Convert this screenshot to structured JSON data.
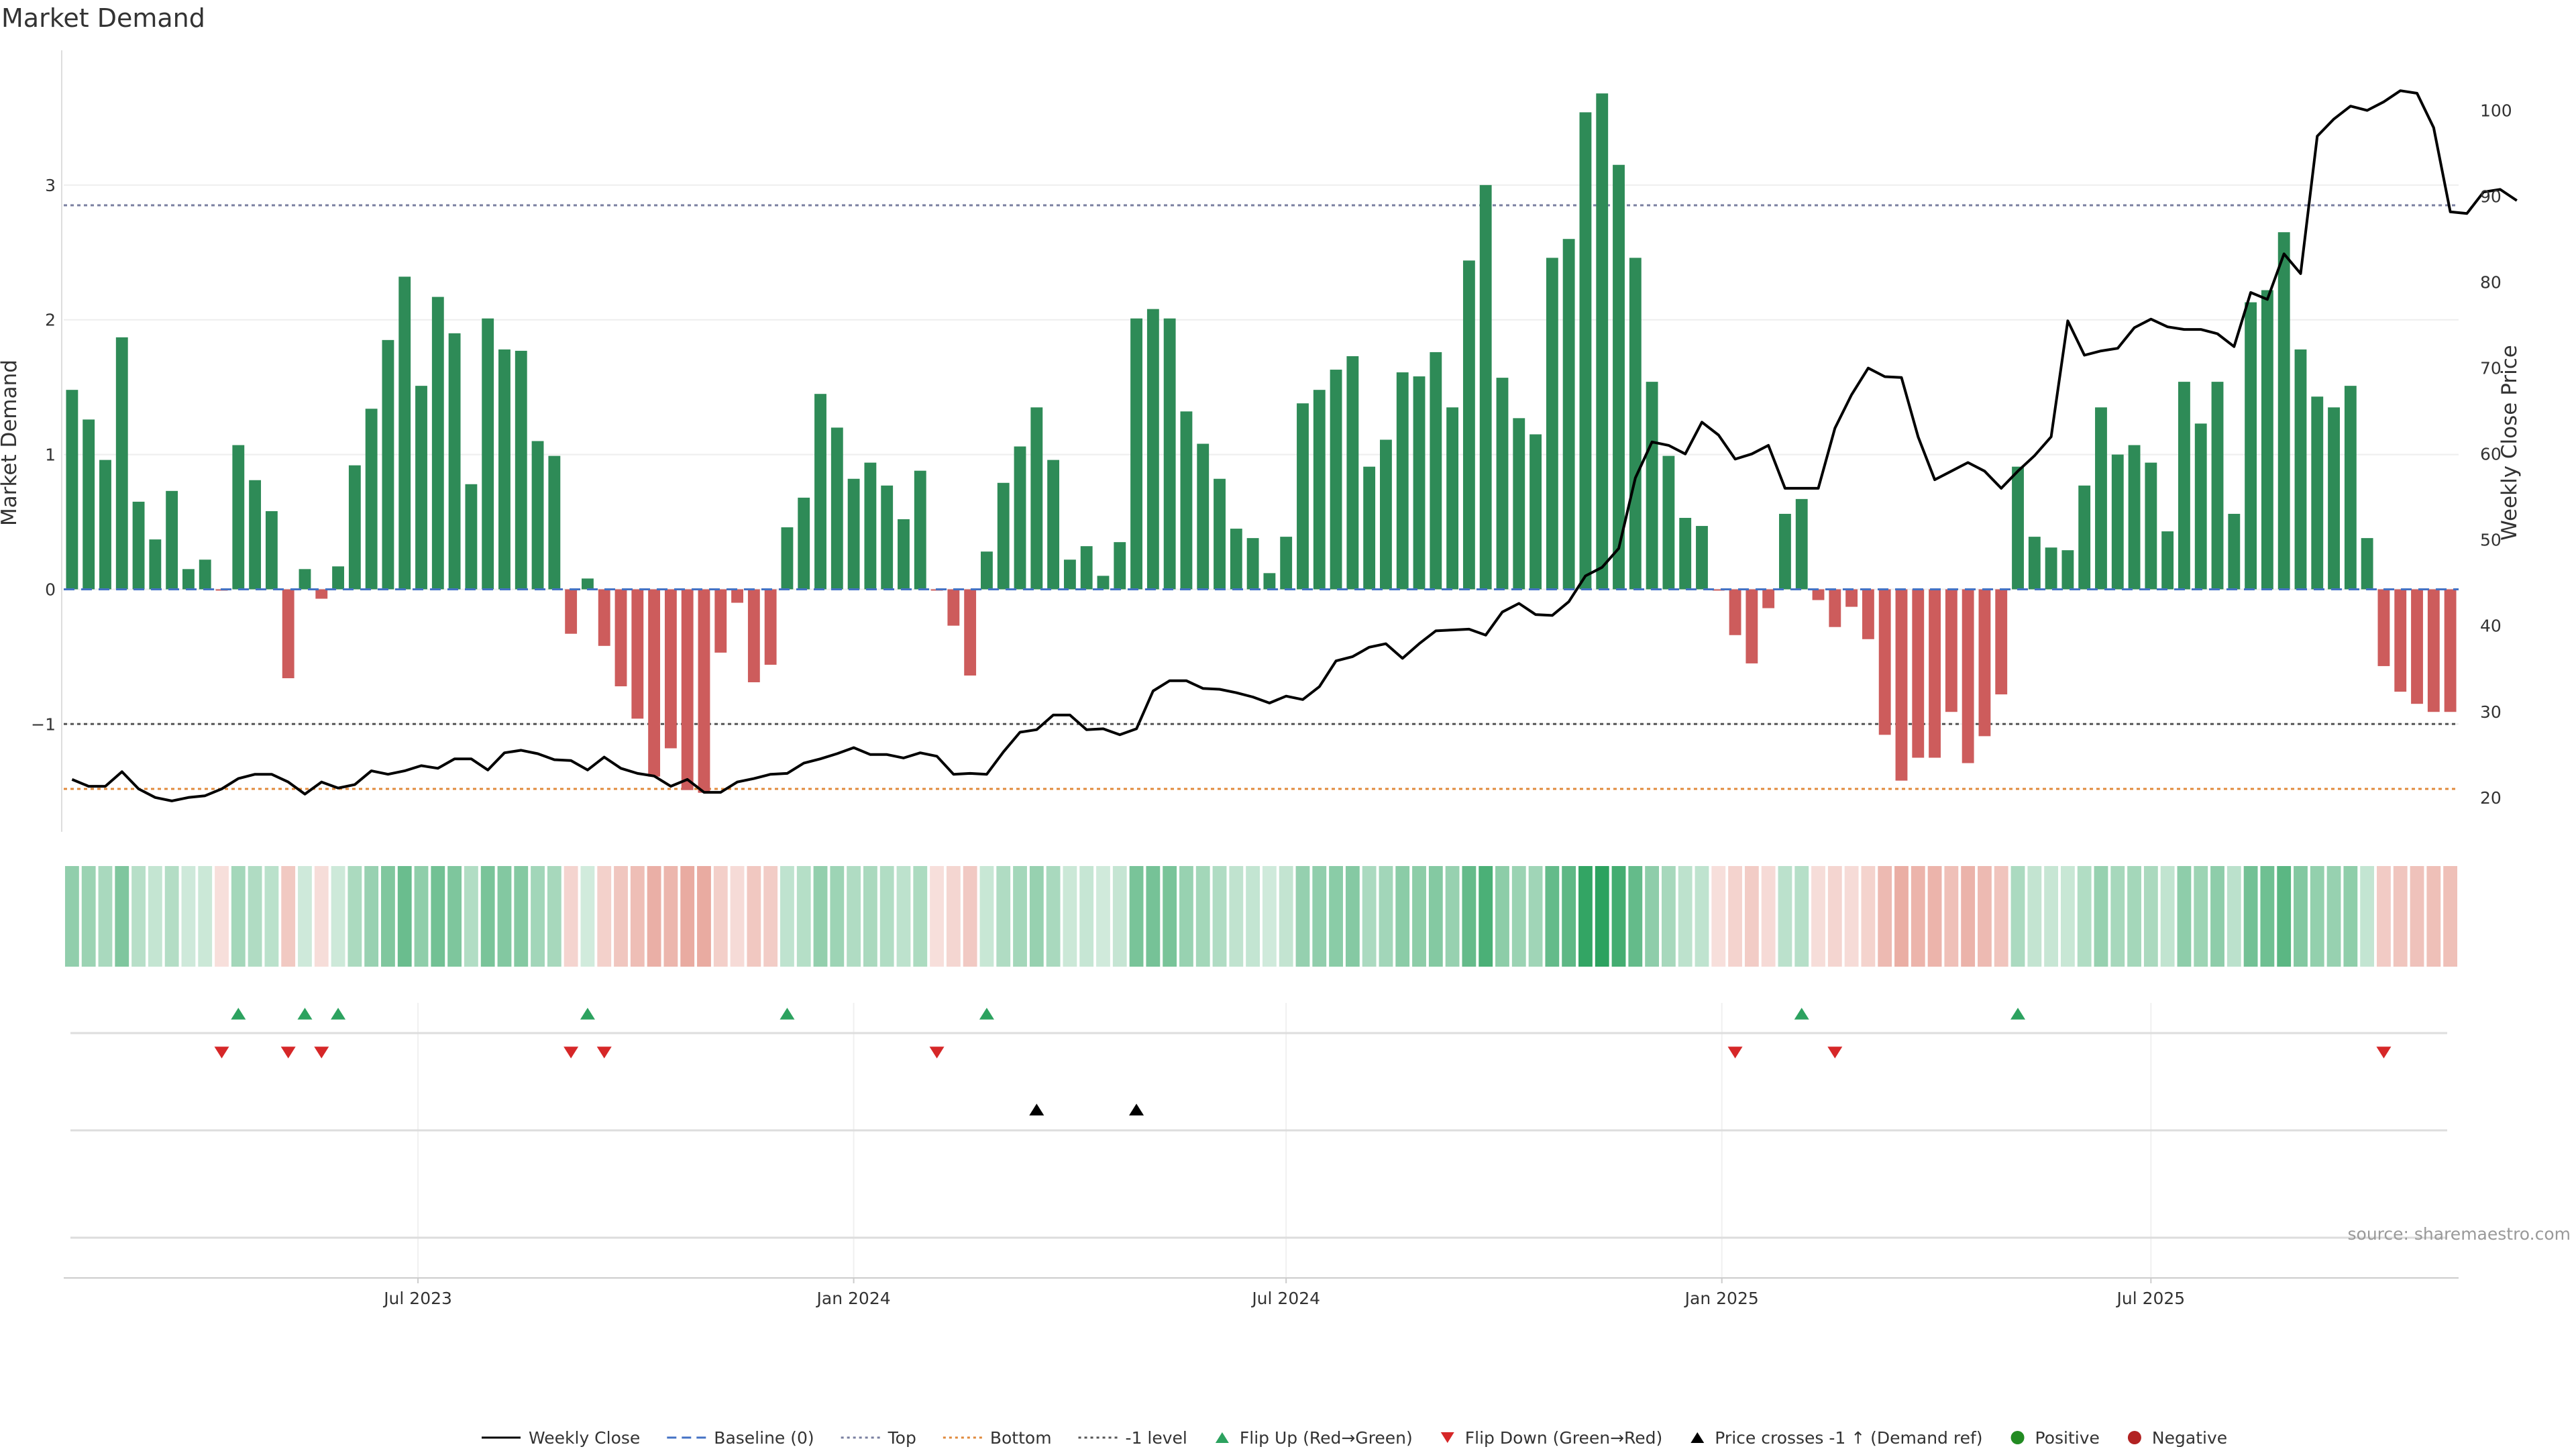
{
  "title": "Market Demand",
  "source": "source: sharemaestro.com",
  "chart_data": {
    "type": "bar",
    "title": "Market Demand",
    "ylabel": "Market Demand",
    "y2label": "Weekly Close Price",
    "ylim": [
      -1.8,
      4.0
    ],
    "y2lim": [
      16,
      107
    ],
    "yticks": [
      3,
      2,
      1,
      0,
      -1
    ],
    "ytick_labels": [
      "3",
      "2",
      "1",
      "0",
      "−1"
    ],
    "y2ticks": [
      100,
      90,
      80,
      70,
      60,
      50,
      40,
      30,
      20
    ],
    "xrange": [
      0,
      144
    ],
    "xticks": [
      {
        "label": "Jul 2023",
        "x": 21.3
      },
      {
        "label": "Jan 2024",
        "x": 47.5
      },
      {
        "label": "Jul 2024",
        "x": 73.5
      },
      {
        "label": "Jan 2025",
        "x": 99.7
      },
      {
        "label": "Jul 2025",
        "x": 125.5
      }
    ],
    "levels": {
      "top": 2.85,
      "neg1": -1.0,
      "bottom_price": 21.0
    },
    "demand": [
      1.48,
      1.26,
      0.96,
      1.87,
      0.65,
      0.37,
      0.73,
      0.15,
      0.22,
      -0.01,
      1.07,
      0.81,
      0.58,
      -0.66,
      0.15,
      -0.07,
      0.17,
      0.92,
      1.34,
      1.85,
      2.32,
      1.51,
      2.17,
      1.9,
      0.78,
      2.01,
      1.78,
      1.77,
      1.1,
      0.99,
      -0.33,
      0.08,
      -0.42,
      -0.72,
      -0.96,
      -1.39,
      -1.18,
      -1.49,
      -1.51,
      -0.47,
      -0.1,
      -0.69,
      -0.56,
      0.46,
      0.68,
      1.45,
      1.2,
      0.82,
      0.94,
      0.77,
      0.52,
      0.88,
      -0.01,
      -0.27,
      -0.64,
      0.28,
      0.79,
      1.06,
      1.35,
      0.96,
      0.22,
      0.32,
      0.1,
      0.35,
      2.01,
      2.08,
      2.01,
      1.32,
      1.08,
      0.82,
      0.45,
      0.38,
      0.12,
      0.39,
      1.38,
      1.48,
      1.63,
      1.73,
      0.91,
      1.11,
      1.61,
      1.58,
      1.76,
      1.35,
      2.44,
      3.0,
      1.57,
      1.27,
      1.15,
      2.46,
      2.6,
      3.54,
      3.68,
      3.15,
      2.46,
      1.54,
      0.99,
      0.53,
      0.47,
      -0.01,
      -0.34,
      -0.55,
      -0.14,
      0.56,
      0.67,
      -0.08,
      -0.28,
      -0.13,
      -0.37,
      -1.08,
      -1.42,
      -1.25,
      -1.25,
      -0.91,
      -1.29,
      -1.09,
      -0.78,
      0.91,
      0.39,
      0.31,
      0.29,
      0.77,
      1.35,
      1.0,
      1.07,
      0.94,
      0.43,
      1.54,
      1.23,
      1.54,
      0.56,
      2.13,
      2.22,
      2.65,
      1.78,
      1.43,
      1.35,
      1.51,
      0.38,
      -0.57,
      -0.76,
      -0.85,
      -0.91,
      -0.91
    ],
    "price": [
      22.1,
      21.3,
      21.3,
      23.0,
      21.0,
      20.0,
      19.6,
      20.0,
      20.2,
      21.0,
      22.2,
      22.7,
      22.7,
      21.8,
      20.4,
      21.8,
      21.1,
      21.5,
      23.1,
      22.7,
      23.1,
      23.7,
      23.4,
      24.5,
      24.5,
      23.2,
      25.2,
      25.5,
      25.1,
      24.4,
      24.3,
      23.2,
      24.7,
      23.4,
      22.8,
      22.5,
      21.3,
      22.1,
      20.6,
      20.6,
      21.8,
      22.2,
      22.7,
      22.8,
      24.0,
      24.5,
      25.1,
      25.8,
      25.0,
      25.0,
      24.6,
      25.2,
      24.8,
      22.7,
      22.8,
      22.7,
      25.3,
      27.6,
      27.9,
      29.6,
      29.6,
      27.9,
      28.0,
      27.3,
      28.0,
      32.4,
      33.6,
      33.6,
      32.7,
      32.6,
      32.2,
      31.7,
      31.0,
      31.8,
      31.4,
      32.9,
      35.9,
      36.4,
      37.5,
      37.9,
      36.2,
      37.9,
      39.4,
      39.5,
      39.6,
      38.9,
      41.6,
      42.6,
      41.3,
      41.2,
      42.8,
      45.8,
      46.8,
      49.0,
      57.2,
      61.4,
      61.0,
      60.0,
      63.7,
      62.2,
      59.4,
      60.0,
      61.0,
      56.0,
      56.0,
      56.0,
      63.0,
      66.9,
      70.0,
      69.0,
      68.9,
      62.0,
      57.0,
      58.0,
      59.0,
      58.0,
      56.0,
      58.0,
      59.8,
      62.0,
      75.5,
      71.5,
      72.0,
      72.3,
      74.7,
      75.7,
      74.8,
      74.5,
      74.5,
      74.0,
      72.5,
      78.8,
      78.0,
      83.3,
      81.0,
      97.0,
      99.0,
      100.5,
      100.0,
      101.0,
      102.3,
      102.0,
      98.0,
      88.2,
      88.0,
      90.5,
      90.8,
      89.5
    ],
    "flip_up": [
      10,
      14,
      16,
      31,
      43,
      55,
      104,
      117
    ],
    "flip_down": [
      9,
      13,
      15,
      30,
      32,
      52,
      100,
      106,
      139
    ],
    "price_cross_up": [
      58,
      64
    ],
    "legend": [
      {
        "label": "Weekly Close",
        "kind": "line",
        "color": "#000000"
      },
      {
        "label": "Baseline (0)",
        "kind": "dash",
        "color": "#4472c4"
      },
      {
        "label": "Top",
        "kind": "dot",
        "color": "#7a7fa0"
      },
      {
        "label": "Bottom",
        "kind": "dot",
        "color": "#e08a3c"
      },
      {
        "label": "-1 level",
        "kind": "dot",
        "color": "#555555"
      },
      {
        "label": "Flip Up (Red→Green)",
        "kind": "tri-up",
        "color": "#2ca25f"
      },
      {
        "label": "Flip Down (Green→Red)",
        "kind": "tri-down",
        "color": "#d62728"
      },
      {
        "label": "Price crosses -1 ↑ (Demand ref)",
        "kind": "tri-up",
        "color": "#000000"
      },
      {
        "label": "Positive",
        "kind": "dot-marker",
        "color": "#228b22"
      },
      {
        "label": "Negative",
        "kind": "dot-marker",
        "color": "#b22222"
      }
    ]
  },
  "colors": {
    "positive": "#2e8b57",
    "negative": "#cd5c5c",
    "price": "#000000"
  }
}
